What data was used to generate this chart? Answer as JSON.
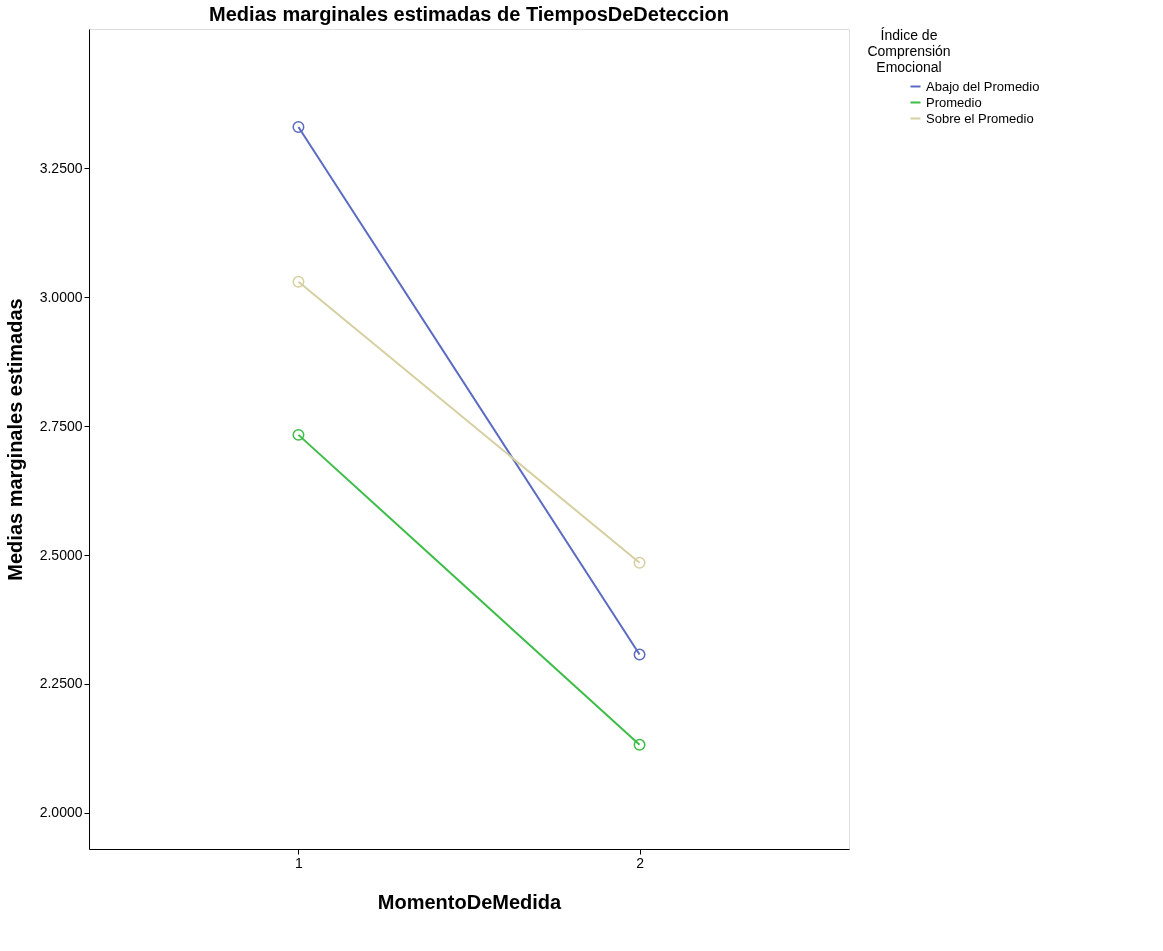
{
  "chart_data": {
    "type": "line",
    "title": "Medias marginales estimadas de TiemposDeDeteccion",
    "xlabel": "MomentoDeMedida",
    "ylabel": "Medias marginales estimadas",
    "legend_title": "Índice de Comprensión Emocional",
    "categories": [
      "1",
      "2"
    ],
    "series": [
      {
        "name": "Abajo del Promedio",
        "color": "#5b6bc1",
        "values": [
          3.33,
          2.307
        ]
      },
      {
        "name": "Promedio",
        "color": "#3dbd48",
        "values": [
          2.733,
          2.132
        ]
      },
      {
        "name": "Sobre el Promedio",
        "color": "#d6cfa1",
        "values": [
          3.03,
          2.485
        ]
      }
    ],
    "ylim": [
      1.93,
      3.52
    ],
    "yticks": [
      {
        "value": 2.0,
        "label": "2.0000"
      },
      {
        "value": 2.25,
        "label": "2.2500"
      },
      {
        "value": 2.5,
        "label": "2.5000"
      },
      {
        "value": 2.75,
        "label": "2.7500"
      },
      {
        "value": 3.0,
        "label": "3.0000"
      },
      {
        "value": 3.25,
        "label": "3.2500"
      }
    ],
    "marker": "circle",
    "grid": false,
    "legend": "top right"
  }
}
